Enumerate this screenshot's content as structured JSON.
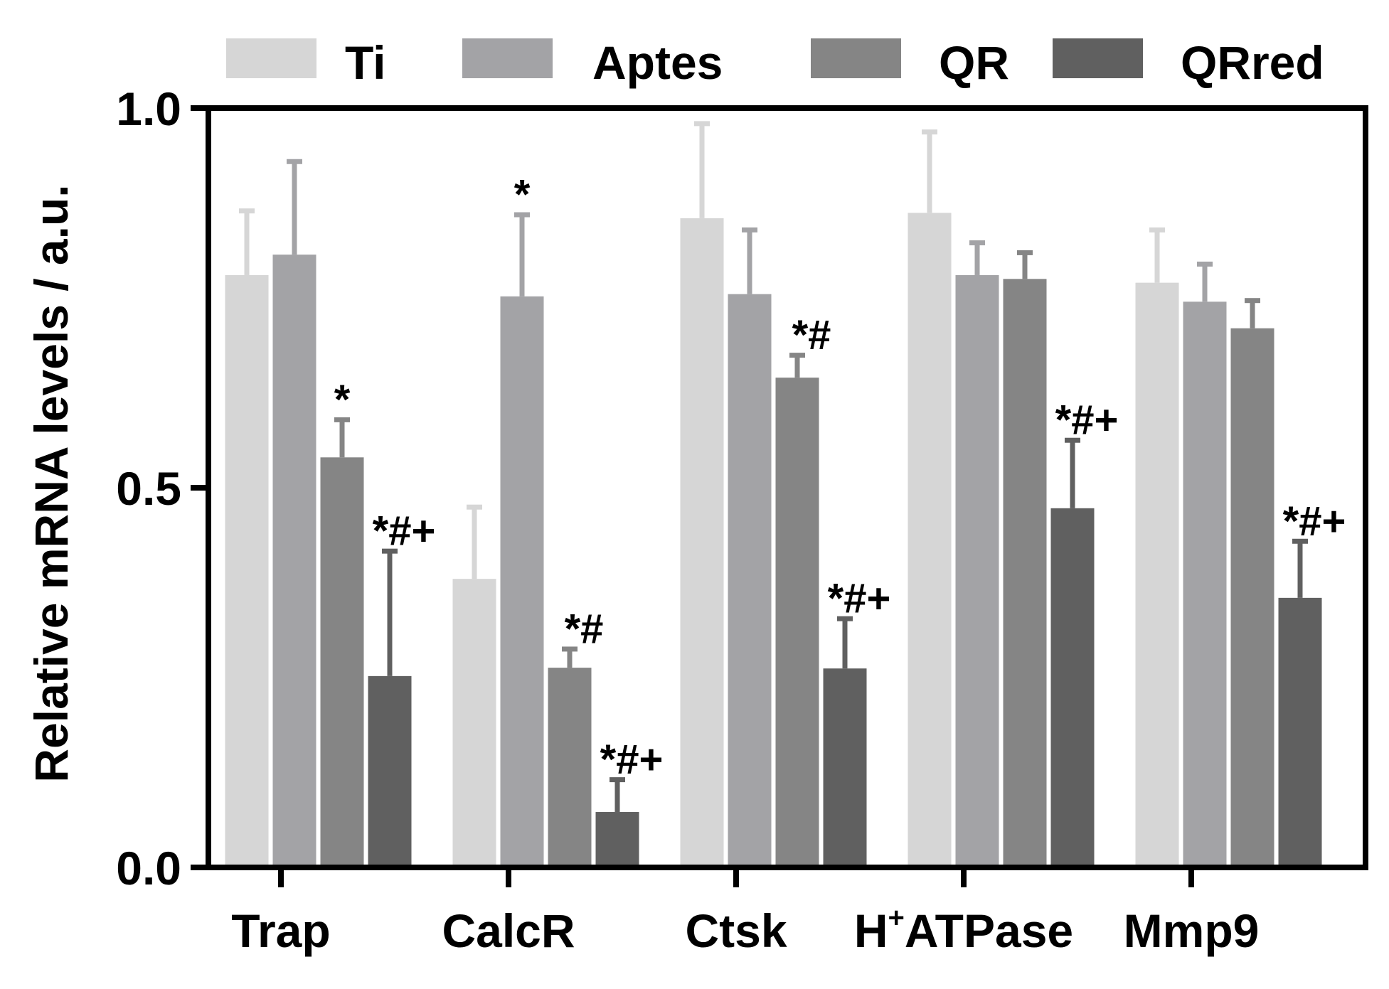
{
  "chart_data": {
    "type": "bar",
    "title": "",
    "xlabel": "",
    "ylabel": "Relative mRNA levels / a.u.",
    "ylim": [
      0,
      1.0
    ],
    "yticks": [
      "0.0",
      "0.5",
      "1.0"
    ],
    "ytick_values": [
      0,
      0.5,
      1.0
    ],
    "legend_position": "top",
    "grid": false,
    "categories": [
      {
        "main": "Trap",
        "sup": "",
        "rest": ""
      },
      {
        "main": "CalcR",
        "sup": "",
        "rest": ""
      },
      {
        "main": "Ctsk",
        "sup": "",
        "rest": ""
      },
      {
        "main": "H",
        "sup": "+",
        "rest": "ATPase"
      },
      {
        "main": "Mmp9",
        "sup": "",
        "rest": ""
      }
    ],
    "series": [
      {
        "name": "Ti",
        "color": "#d6d6d6",
        "values": [
          0.78,
          0.38,
          0.855,
          0.862,
          0.77
        ],
        "errors": [
          0.085,
          0.095,
          0.125,
          0.107,
          0.07
        ],
        "annotations": [
          "",
          "",
          "",
          "",
          ""
        ]
      },
      {
        "name": "Aptes",
        "color": "#a3a3a6",
        "values": [
          0.807,
          0.752,
          0.755,
          0.78,
          0.745
        ],
        "errors": [
          0.123,
          0.108,
          0.085,
          0.043,
          0.05
        ],
        "annotations": [
          "",
          "*",
          "",
          "",
          ""
        ]
      },
      {
        "name": "QR",
        "color": "#858585",
        "values": [
          0.54,
          0.263,
          0.645,
          0.775,
          0.71
        ],
        "errors": [
          0.05,
          0.025,
          0.03,
          0.035,
          0.037
        ],
        "annotations": [
          "*",
          "*#",
          "*#",
          "",
          ""
        ]
      },
      {
        "name": "QRred",
        "color": "#606060",
        "values": [
          0.252,
          0.073,
          0.262,
          0.473,
          0.355
        ],
        "errors": [
          0.165,
          0.043,
          0.066,
          0.09,
          0.075
        ],
        "annotations": [
          "*#+",
          "*#+",
          "*#+",
          "*#+",
          "*#+"
        ]
      }
    ]
  }
}
